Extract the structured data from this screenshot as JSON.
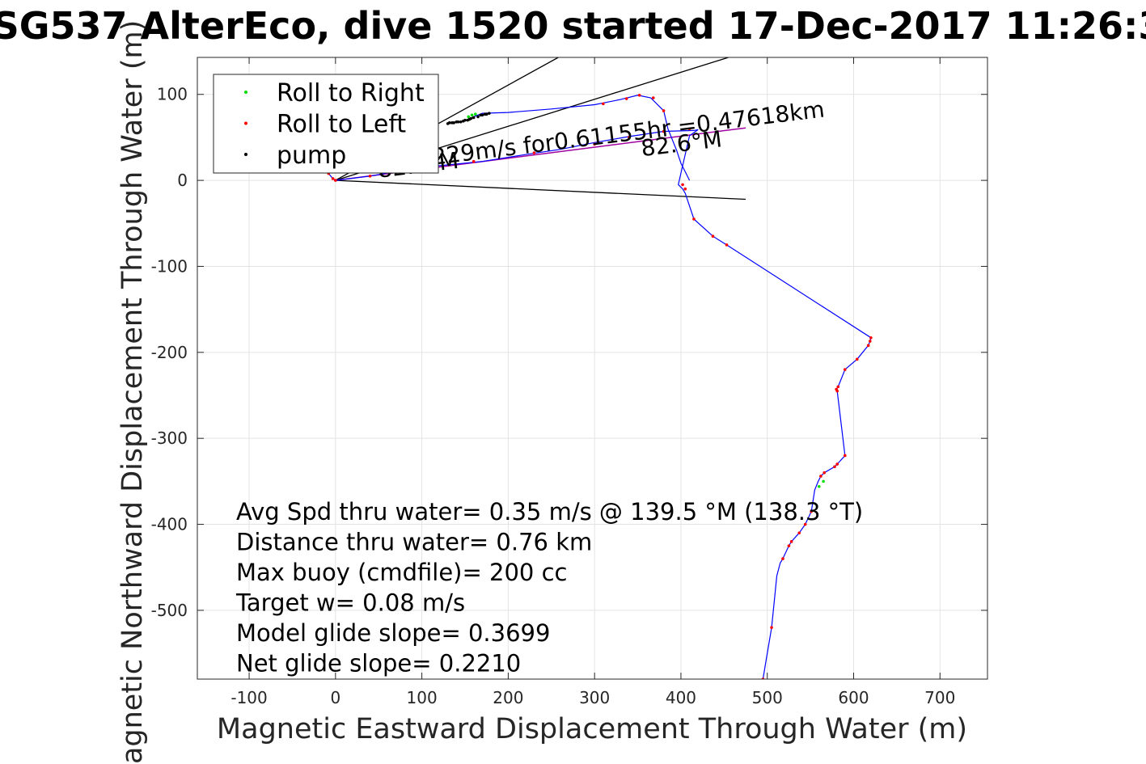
{
  "chart_data": {
    "type": "line",
    "title": "SG537 AlterEco, dive 1520 started 17-Dec-2017 11:26:3",
    "xlabel": "Magnetic Eastward Displacement Through Water (m)",
    "ylabel": "Magnetic Northward Displacement Through Water (m)",
    "xlim": [
      -160,
      755
    ],
    "ylim": [
      -580,
      143
    ],
    "xticks": [
      -100,
      0,
      100,
      200,
      300,
      400,
      500,
      600,
      700
    ],
    "yticks": [
      -500,
      -400,
      -300,
      -200,
      -100,
      0,
      100
    ],
    "grid": true,
    "legend_position": "top-left",
    "legend": [
      {
        "label": "Roll to Right",
        "color": "#00dd00"
      },
      {
        "label": "Roll to Left",
        "color": "#ff0000"
      },
      {
        "label": "pump",
        "color": "#000000"
      }
    ],
    "series": [
      {
        "role": "track",
        "color": "#0000ff",
        "x": [
          -8,
          -3,
          0,
          40,
          80,
          120,
          170,
          220,
          260,
          300,
          340,
          380,
          415,
          420,
          410,
          397,
          402,
          405,
          415,
          437,
          453,
          620,
          619,
          617,
          604,
          590,
          582,
          580,
          581,
          590,
          581,
          578,
          566,
          562,
          559,
          555,
          551,
          544,
          537,
          528,
          525,
          518,
          515,
          511,
          505,
          500,
          495
        ],
        "y": [
          8,
          2,
          0,
          5,
          12,
          17,
          22,
          30,
          36,
          44,
          51,
          57,
          58,
          59,
          52,
          -5,
          -10,
          -15,
          -45,
          -65,
          -75,
          -183,
          -187,
          -192,
          -208,
          -220,
          -240,
          -243,
          -245,
          -320,
          -330,
          -333,
          -340,
          -344,
          -350,
          -360,
          -385,
          -400,
          -410,
          -420,
          -425,
          -440,
          -445,
          -460,
          -520,
          -550,
          -580
        ]
      },
      {
        "role": "track-upper",
        "color": "#0000ff",
        "x": [
          130,
          145,
          155,
          160,
          170,
          200,
          250,
          300,
          330,
          350,
          365,
          380,
          385,
          395,
          400,
          405,
          410
        ],
        "y": [
          66,
          68,
          71,
          74,
          78,
          79,
          83,
          88,
          94,
          99,
          96,
          81,
          60,
          35,
          20,
          10,
          0
        ]
      }
    ],
    "roll_to_right_points": {
      "x": [
        154,
        158,
        162,
        560,
        565
      ],
      "y": [
        74,
        76,
        77,
        -356,
        -350
      ]
    },
    "roll_to_left_points": {
      "x": [
        -8,
        -3,
        0,
        40,
        110,
        160,
        230,
        300,
        340,
        380,
        410,
        402,
        405,
        415,
        437,
        453,
        620,
        619,
        617,
        604,
        590,
        582,
        580,
        581,
        590,
        581,
        578,
        566,
        562,
        551,
        544,
        537,
        528,
        525,
        518,
        505,
        495,
        310,
        337,
        352,
        368,
        380
      ],
      "y": [
        8,
        2,
        0,
        5,
        15,
        22,
        32,
        42,
        50,
        57,
        60,
        -5,
        -10,
        -45,
        -65,
        -75,
        -183,
        -187,
        -192,
        -208,
        -220,
        -240,
        -243,
        -245,
        -320,
        -330,
        -333,
        -340,
        -344,
        -385,
        -400,
        -410,
        -420,
        -425,
        -440,
        -520,
        -580,
        89,
        95,
        99,
        96,
        81
      ]
    },
    "pump_points": {
      "x": [
        130,
        132,
        135,
        137,
        140,
        142,
        145,
        148,
        150,
        153,
        155,
        157,
        160,
        165,
        168,
        170,
        173,
        175,
        178
      ],
      "y": [
        66,
        67,
        67,
        67,
        68,
        68,
        68,
        69,
        70,
        70,
        71,
        72,
        73,
        74,
        76,
        76,
        77,
        77,
        78
      ]
    },
    "reference_lines": [
      {
        "name": "heading-line-upper",
        "color": "#000000",
        "x": [
          0,
          455
        ],
        "y": [
          0,
          143
        ]
      },
      {
        "name": "heading-line-middle",
        "color": "#000000",
        "x": [
          0,
          258
        ],
        "y": [
          0,
          143
        ]
      },
      {
        "name": "heading-line-lower",
        "color": "#000000",
        "x": [
          0,
          475
        ],
        "y": [
          0,
          -22
        ]
      }
    ],
    "course_line": {
      "color": "#a000a0",
      "x": [
        0,
        475
      ],
      "y": [
        0,
        61
      ]
    },
    "annotations": [
      {
        "text": "82.6°M",
        "x": 50,
        "y": 3,
        "rotation": 7
      },
      {
        "text": "82.6°M",
        "x": 355,
        "y": 28,
        "rotation": 7
      },
      {
        "text": "0.229m/s for0.61155hr =0.47618km",
        "x": 88,
        "y": 15,
        "rotation": 7
      }
    ],
    "stats": [
      "Avg Spd thru water=  0.35 m/s @ 139.5 °M (138.3 °T)",
      "Distance thru water=  0.76 km",
      "Max buoy (cmdfile)= 200 cc",
      "Target w= 0.08 m/s",
      "Model glide slope= 0.3699",
      "Net glide slope= 0.2210"
    ]
  }
}
